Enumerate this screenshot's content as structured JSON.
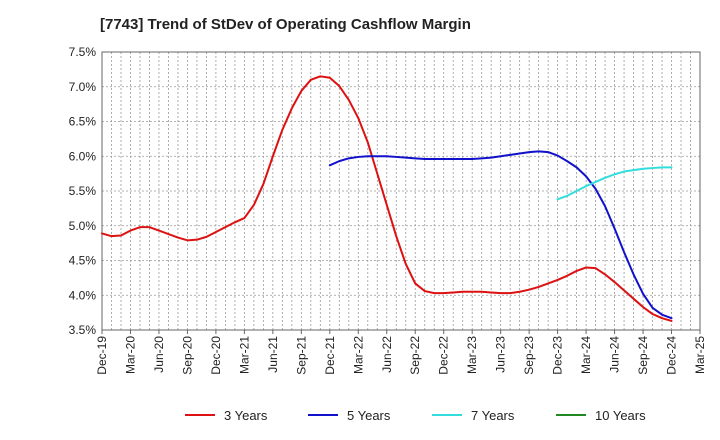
{
  "chart_data": {
    "type": "line",
    "title": "[7743]  Trend of StDev of Operating Cashflow Margin",
    "xlabel": "",
    "ylabel": "",
    "x_ticks": [
      "Dec-19",
      "Mar-20",
      "Jun-20",
      "Sep-20",
      "Dec-20",
      "Mar-21",
      "Jun-21",
      "Sep-21",
      "Dec-21",
      "Mar-22",
      "Jun-22",
      "Sep-22",
      "Dec-22",
      "Mar-23",
      "Jun-23",
      "Sep-23",
      "Dec-23",
      "Mar-24",
      "Jun-24",
      "Sep-24",
      "Dec-24",
      "Mar-25"
    ],
    "ylim": [
      3.5,
      7.5
    ],
    "y_ticks": [
      "3.5%",
      "4.0%",
      "4.5%",
      "5.0%",
      "5.5%",
      "6.0%",
      "6.5%",
      "7.0%",
      "7.5%"
    ],
    "grid": true,
    "legend_position": "bottom",
    "series": [
      {
        "name": "3 Years",
        "color": "#dd1111",
        "x": [
          "2019-12",
          "2020-01",
          "2020-02",
          "2020-03",
          "2020-04",
          "2020-05",
          "2020-06",
          "2020-07",
          "2020-08",
          "2020-09",
          "2020-10",
          "2020-11",
          "2020-12",
          "2021-01",
          "2021-02",
          "2021-03",
          "2021-04",
          "2021-05",
          "2021-06",
          "2021-07",
          "2021-08",
          "2021-09",
          "2021-10",
          "2021-11",
          "2021-12",
          "2022-01",
          "2022-02",
          "2022-03",
          "2022-04",
          "2022-05",
          "2022-06",
          "2022-07",
          "2022-08",
          "2022-09",
          "2022-10",
          "2022-11",
          "2022-12",
          "2023-01",
          "2023-02",
          "2023-03",
          "2023-04",
          "2023-05",
          "2023-06",
          "2023-07",
          "2023-08",
          "2023-09",
          "2023-10",
          "2023-11",
          "2023-12",
          "2024-01",
          "2024-02",
          "2024-03",
          "2024-04",
          "2024-05",
          "2024-06",
          "2024-07",
          "2024-08",
          "2024-09",
          "2024-10",
          "2024-11",
          "2024-12"
        ],
        "values": [
          4.89,
          4.85,
          4.86,
          4.93,
          4.98,
          4.98,
          4.93,
          4.88,
          4.83,
          4.79,
          4.8,
          4.84,
          4.91,
          4.98,
          5.05,
          5.11,
          5.3,
          5.6,
          6.0,
          6.38,
          6.69,
          6.94,
          7.1,
          7.15,
          7.13,
          7.01,
          6.81,
          6.55,
          6.2,
          5.75,
          5.3,
          4.85,
          4.45,
          4.17,
          4.06,
          4.03,
          4.03,
          4.04,
          4.05,
          4.05,
          4.05,
          4.04,
          4.03,
          4.03,
          4.05,
          4.08,
          4.12,
          4.17,
          4.22,
          4.28,
          4.35,
          4.4,
          4.39,
          4.3,
          4.19,
          4.07,
          3.95,
          3.83,
          3.73,
          3.67,
          3.63
        ]
      },
      {
        "name": "5 Years",
        "color": "#1111cc",
        "x": [
          "2021-12",
          "2022-01",
          "2022-02",
          "2022-03",
          "2022-04",
          "2022-05",
          "2022-06",
          "2022-07",
          "2022-08",
          "2022-09",
          "2022-10",
          "2022-11",
          "2022-12",
          "2023-01",
          "2023-02",
          "2023-03",
          "2023-04",
          "2023-05",
          "2023-06",
          "2023-07",
          "2023-08",
          "2023-09",
          "2023-10",
          "2023-11",
          "2023-12",
          "2024-01",
          "2024-02",
          "2024-03",
          "2024-04",
          "2024-05",
          "2024-06",
          "2024-07",
          "2024-08",
          "2024-09",
          "2024-10",
          "2024-11",
          "2024-12"
        ],
        "values": [
          5.87,
          5.93,
          5.97,
          5.99,
          6.0,
          6.0,
          6.0,
          5.99,
          5.98,
          5.97,
          5.96,
          5.96,
          5.96,
          5.96,
          5.96,
          5.96,
          5.97,
          5.98,
          6.0,
          6.02,
          6.04,
          6.06,
          6.07,
          6.06,
          6.01,
          5.93,
          5.84,
          5.71,
          5.53,
          5.28,
          4.96,
          4.62,
          4.3,
          4.02,
          3.82,
          3.72,
          3.67
        ]
      },
      {
        "name": "7 Years",
        "color": "#33dddd",
        "x": [
          "2023-12",
          "2024-01",
          "2024-02",
          "2024-03",
          "2024-04",
          "2024-05",
          "2024-06",
          "2024-07",
          "2024-08",
          "2024-09",
          "2024-10",
          "2024-11",
          "2024-12"
        ],
        "values": [
          5.38,
          5.43,
          5.5,
          5.57,
          5.63,
          5.69,
          5.74,
          5.78,
          5.8,
          5.82,
          5.83,
          5.84,
          5.84
        ]
      },
      {
        "name": "10 Years",
        "color": "#228822",
        "x": [],
        "values": []
      }
    ]
  }
}
